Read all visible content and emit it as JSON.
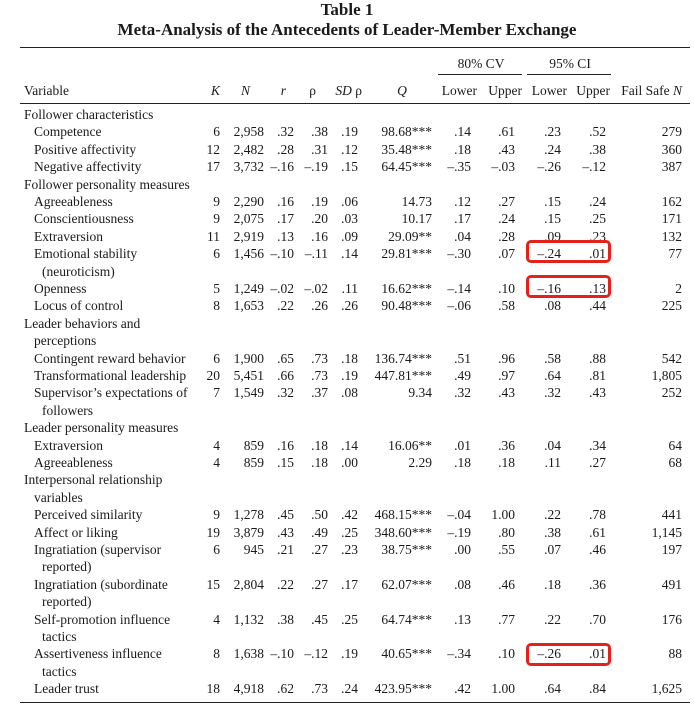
{
  "title": "Table 1",
  "subtitle": "Meta-Analysis of the Antecedents of Leader-Member Exchange",
  "group_headers": {
    "cv": "80% CV",
    "ci": "95% CI"
  },
  "columns": {
    "variable": "Variable",
    "k": "K",
    "n": "N",
    "r": "r",
    "rho": "ρ",
    "sd_rho": "SD ρ",
    "q": "Q",
    "cv_lower": "Lower",
    "cv_upper": "Upper",
    "ci_lower": "Lower",
    "ci_upper": "Upper",
    "failsafe": "Fail Safe ",
    "failsafe_n": "N"
  },
  "rows": [
    {
      "type": "section",
      "text": "Follower characteristics"
    },
    {
      "type": "data",
      "label": "Competence",
      "k": "6",
      "n": "2,958",
      "r": ".32",
      "rho": ".38",
      "sd": ".19",
      "q": "98.68***",
      "cvl": ".14",
      "cvu": ".61",
      "cil": ".23",
      "ciu": ".52",
      "fs": "279"
    },
    {
      "type": "data",
      "label": "Positive affectivity",
      "k": "12",
      "n": "2,482",
      "r": ".28",
      "rho": ".31",
      "sd": ".12",
      "q": "35.48***",
      "cvl": ".18",
      "cvu": ".43",
      "cil": ".24",
      "ciu": ".38",
      "fs": "360"
    },
    {
      "type": "data",
      "label": "Negative affectivity",
      "k": "17",
      "n": "3,732",
      "r": "–.16",
      "rho": "–.19",
      "sd": ".15",
      "q": "64.45***",
      "cvl": "–.35",
      "cvu": "–.03",
      "cil": "–.26",
      "ciu": "–.12",
      "fs": "387"
    },
    {
      "type": "section",
      "text": "Follower personality measures"
    },
    {
      "type": "data",
      "label": "Agreeableness",
      "k": "9",
      "n": "2,290",
      "r": ".16",
      "rho": ".19",
      "sd": ".06",
      "q": "14.73",
      "cvl": ".12",
      "cvu": ".27",
      "cil": ".15",
      "ciu": ".24",
      "fs": "162"
    },
    {
      "type": "data",
      "label": "Conscientiousness",
      "k": "9",
      "n": "2,075",
      "r": ".17",
      "rho": ".20",
      "sd": ".03",
      "q": "10.17",
      "cvl": ".17",
      "cvu": ".24",
      "cil": ".15",
      "ciu": ".25",
      "fs": "171"
    },
    {
      "type": "data",
      "label": "Extraversion",
      "k": "11",
      "n": "2,919",
      "r": ".13",
      "rho": ".16",
      "sd": ".09",
      "q": "29.09**",
      "cvl": ".04",
      "cvu": ".28",
      "cil": ".09",
      "ciu": ".23",
      "fs": "132"
    },
    {
      "type": "data",
      "label": "Emotional stability",
      "k": "6",
      "n": "1,456",
      "r": "–.10",
      "rho": "–.11",
      "sd": ".14",
      "q": "29.81***",
      "cvl": "–.30",
      "cvu": ".07",
      "cil": "–.24",
      "ciu": ".01",
      "fs": "77"
    },
    {
      "type": "cont",
      "label": "(neuroticism)"
    },
    {
      "type": "data",
      "label": "Openness",
      "k": "5",
      "n": "1,249",
      "r": "–.02",
      "rho": "–.02",
      "sd": ".11",
      "q": "16.62***",
      "cvl": "–.14",
      "cvu": ".10",
      "cil": "–.16",
      "ciu": ".13",
      "fs": "2"
    },
    {
      "type": "data",
      "label": "Locus of control",
      "k": "8",
      "n": "1,653",
      "r": ".22",
      "rho": ".26",
      "sd": ".26",
      "q": "90.48***",
      "cvl": "–.06",
      "cvu": ".58",
      "cil": ".08",
      "ciu": ".44",
      "fs": "225"
    },
    {
      "type": "section",
      "text": "Leader behaviors and"
    },
    {
      "type": "section",
      "text": "perceptions",
      "indent": true
    },
    {
      "type": "data",
      "label": "Contingent reward behavior",
      "k": "6",
      "n": "1,900",
      "r": ".65",
      "rho": ".73",
      "sd": ".18",
      "q": "136.74***",
      "cvl": ".51",
      "cvu": ".96",
      "cil": ".58",
      "ciu": ".88",
      "fs": "542"
    },
    {
      "type": "data",
      "label": "Transformational leadership",
      "k": "20",
      "n": "5,451",
      "r": ".66",
      "rho": ".73",
      "sd": ".19",
      "q": "447.81***",
      "cvl": ".49",
      "cvu": ".97",
      "cil": ".64",
      "ciu": ".81",
      "fs": "1,805"
    },
    {
      "type": "data",
      "label": "Supervisor’s expectations of",
      "k": "7",
      "n": "1,549",
      "r": ".32",
      "rho": ".37",
      "sd": ".08",
      "q": "9.34",
      "cvl": ".32",
      "cvu": ".43",
      "cil": ".32",
      "ciu": ".43",
      "fs": "252"
    },
    {
      "type": "cont",
      "label": "followers"
    },
    {
      "type": "section",
      "text": "Leader personality measures"
    },
    {
      "type": "data",
      "label": "Extraversion",
      "k": "4",
      "n": "859",
      "r": ".16",
      "rho": ".18",
      "sd": ".14",
      "q": "16.06**",
      "cvl": ".01",
      "cvu": ".36",
      "cil": ".04",
      "ciu": ".34",
      "fs": "64"
    },
    {
      "type": "data",
      "label": "Agreeableness",
      "k": "4",
      "n": "859",
      "r": ".15",
      "rho": ".18",
      "sd": ".00",
      "q": "2.29",
      "cvl": ".18",
      "cvu": ".18",
      "cil": ".11",
      "ciu": ".27",
      "fs": "68"
    },
    {
      "type": "section",
      "text": "Interpersonal relationship"
    },
    {
      "type": "section",
      "text": "variables",
      "indent": true
    },
    {
      "type": "data",
      "label": "Perceived similarity",
      "k": "9",
      "n": "1,278",
      "r": ".45",
      "rho": ".50",
      "sd": ".42",
      "q": "468.15***",
      "cvl": "–.04",
      "cvu": "1.00",
      "cil": ".22",
      "ciu": ".78",
      "fs": "441"
    },
    {
      "type": "data",
      "label": "Affect or liking",
      "k": "19",
      "n": "3,879",
      "r": ".43",
      "rho": ".49",
      "sd": ".25",
      "q": "348.60***",
      "cvl": "–.19",
      "cvu": ".80",
      "cil": ".38",
      "ciu": ".61",
      "fs": "1,145"
    },
    {
      "type": "data",
      "label": "Ingratiation (supervisor",
      "k": "6",
      "n": "945",
      "r": ".21",
      "rho": ".27",
      "sd": ".23",
      "q": "38.75***",
      "cvl": ".00",
      "cvu": ".55",
      "cil": ".07",
      "ciu": ".46",
      "fs": "197"
    },
    {
      "type": "cont",
      "label": "reported)"
    },
    {
      "type": "data",
      "label": "Ingratiation (subordinate",
      "k": "15",
      "n": "2,804",
      "r": ".22",
      "rho": ".27",
      "sd": ".17",
      "q": "62.07***",
      "cvl": ".08",
      "cvu": ".46",
      "cil": ".18",
      "ciu": ".36",
      "fs": "491"
    },
    {
      "type": "cont",
      "label": "reported)"
    },
    {
      "type": "data",
      "label": "Self-promotion influence",
      "k": "4",
      "n": "1,132",
      "r": ".38",
      "rho": ".45",
      "sd": ".25",
      "q": "64.74***",
      "cvl": ".13",
      "cvu": ".77",
      "cil": ".22",
      "ciu": ".70",
      "fs": "176"
    },
    {
      "type": "cont",
      "label": "tactics"
    },
    {
      "type": "data",
      "label": "Assertiveness influence",
      "k": "8",
      "n": "1,638",
      "r": "–.10",
      "rho": "–.12",
      "sd": ".19",
      "q": "40.65***",
      "cvl": "–.34",
      "cvu": ".10",
      "cil": "–.26",
      "ciu": ".01",
      "fs": "88"
    },
    {
      "type": "cont",
      "label": "tactics"
    },
    {
      "type": "data",
      "label": "Leader trust",
      "k": "18",
      "n": "4,918",
      "r": ".62",
      "rho": ".73",
      "sd": ".24",
      "q": "423.95***",
      "cvl": ".42",
      "cvu": "1.00",
      "cil": ".64",
      "ciu": ".84",
      "fs": "1,625"
    }
  ],
  "highlight_color": "#e3231b",
  "highlighted_ci_rows": [
    "Emotional stability",
    "Openness",
    "Assertiveness influence"
  ]
}
